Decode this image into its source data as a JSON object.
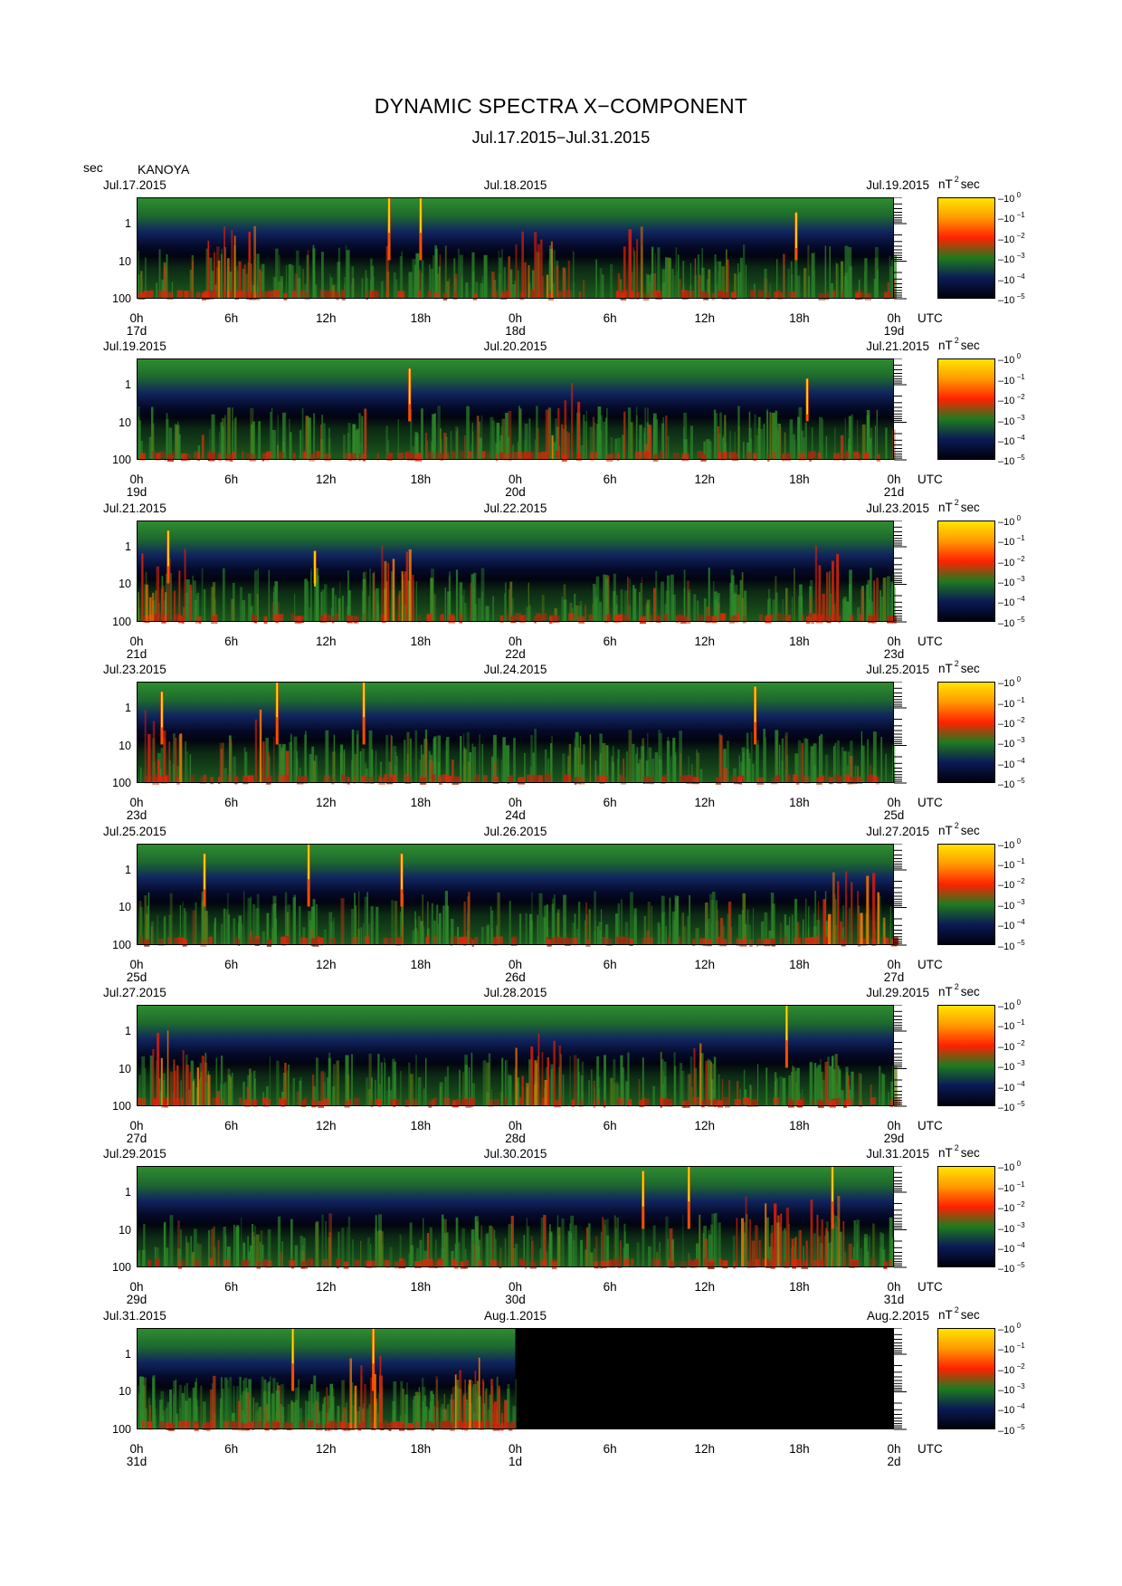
{
  "header": {
    "title": "DYNAMIC SPECTRA X−COMPONENT",
    "subtitle": "Jul.17.2015−Jul.31.2015",
    "unit_label": "sec",
    "station": "KANOYA"
  },
  "colorbar": {
    "unit_main": "nT",
    "unit_sup": "2",
    "unit_tail": "sec",
    "tick_labels": [
      "10",
      "10",
      "10",
      "10",
      "10",
      "10"
    ],
    "tick_exponents": [
      "0",
      "−1",
      "−2",
      "−3",
      "−4",
      "−5"
    ],
    "colors": [
      "#ffe600",
      "#ff9900",
      "#ff2200",
      "#1f7a1f",
      "#0a1a55",
      "#00000a"
    ]
  },
  "chart_data": {
    "type": "heatmap",
    "title": "DYNAMIC SPECTRA X−COMPONENT",
    "subtitle": "Jul.17.2015−Jul.31.2015",
    "ylabel": "sec",
    "y_scale": "log",
    "ylim": [
      100,
      0.2
    ],
    "y_ticks": [
      "1",
      "10",
      "100"
    ],
    "x_ticks": [
      "0h",
      "6h",
      "12h",
      "18h",
      "0h",
      "6h",
      "12h",
      "18h",
      "0h"
    ],
    "x_unit": "UTC",
    "colorbar_range": [
      1e-05,
      1
    ],
    "panels": [
      {
        "start_date": "Jul.17.2015",
        "mid_date": "Jul.18.2015",
        "end_date": "Jul.19.2015",
        "days": [
          "17d",
          "18d",
          "19d"
        ],
        "data_end_hour": 48,
        "spikes": [
          {
            "hour": 16.0,
            "level": 0.0
          },
          {
            "hour": 18.0,
            "level": 0.0
          },
          {
            "hour": 41.8,
            "level": 0.15
          }
        ],
        "red_bursts": [
          {
            "start": 4.5,
            "end": 8.0
          },
          {
            "start": 24.0,
            "end": 27.5
          },
          {
            "start": 30.5,
            "end": 32.0
          }
        ]
      },
      {
        "start_date": "Jul.19.2015",
        "mid_date": "Jul.20.2015",
        "end_date": "Jul.21.2015",
        "days": [
          "19d",
          "20d",
          "21d"
        ],
        "data_end_hour": 48,
        "spikes": [
          {
            "hour": 17.3,
            "level": 0.1
          },
          {
            "hour": 42.5,
            "level": 0.2
          }
        ],
        "red_bursts": [
          {
            "start": 26.0,
            "end": 28.0
          }
        ]
      },
      {
        "start_date": "Jul.21.2015",
        "mid_date": "Jul.22.2015",
        "end_date": "Jul.23.2015",
        "days": [
          "21d",
          "22d",
          "23d"
        ],
        "data_end_hour": 48,
        "spikes": [
          {
            "hour": 2.0,
            "level": 0.1
          },
          {
            "hour": 11.3,
            "level": 0.3
          }
        ],
        "red_bursts": [
          {
            "start": 15.5,
            "end": 17.5
          },
          {
            "start": 0.3,
            "end": 3.5
          },
          {
            "start": 43.0,
            "end": 44.5
          }
        ]
      },
      {
        "start_date": "Jul.23.2015",
        "mid_date": "Jul.24.2015",
        "end_date": "Jul.25.2015",
        "days": [
          "23d",
          "24d",
          "25d"
        ],
        "data_end_hour": 48,
        "spikes": [
          {
            "hour": 1.6,
            "level": 0.1
          },
          {
            "hour": 8.9,
            "level": 0.0
          },
          {
            "hour": 14.4,
            "level": 0.0
          },
          {
            "hour": 39.2,
            "level": 0.05
          }
        ],
        "red_bursts": [
          {
            "start": 0.5,
            "end": 3.0
          },
          {
            "start": 7.5,
            "end": 8.5
          }
        ]
      },
      {
        "start_date": "Jul.25.2015",
        "mid_date": "Jul.26.2015",
        "end_date": "Jul.27.2015",
        "days": [
          "25d",
          "26d",
          "27d"
        ],
        "data_end_hour": 48,
        "spikes": [
          {
            "hour": 4.3,
            "level": 0.1
          },
          {
            "hour": 10.9,
            "level": 0.0
          },
          {
            "hour": 16.8,
            "level": 0.1
          }
        ],
        "red_bursts": [
          {
            "start": 43.5,
            "end": 47.5
          }
        ]
      },
      {
        "start_date": "Jul.27.2015",
        "mid_date": "Jul.28.2015",
        "end_date": "Jul.29.2015",
        "days": [
          "27d",
          "28d",
          "29d"
        ],
        "data_end_hour": 48,
        "spikes": [
          {
            "hour": 41.2,
            "level": 0.0
          }
        ],
        "red_bursts": [
          {
            "start": 1.0,
            "end": 4.5
          },
          {
            "start": 24.0,
            "end": 27.0
          },
          {
            "start": 35.0,
            "end": 36.5
          }
        ]
      },
      {
        "start_date": "Jul.29.2015",
        "mid_date": "Jul.30.2015",
        "end_date": "Jul.31.2015",
        "days": [
          "29d",
          "30d",
          "31d"
        ],
        "data_end_hour": 48,
        "spikes": [
          {
            "hour": 32.1,
            "level": 0.05
          },
          {
            "hour": 35.0,
            "level": 0.0
          },
          {
            "hour": 44.1,
            "level": 0.0
          }
        ],
        "red_bursts": [
          {
            "start": 38.0,
            "end": 45.0
          }
        ]
      },
      {
        "start_date": "Jul.31.2015",
        "mid_date": "Aug.1.2015",
        "end_date": "Aug.2.2015",
        "days": [
          "31d",
          "1d",
          "2d"
        ],
        "data_end_hour": 24,
        "spikes": [
          {
            "hour": 9.9,
            "level": 0.0
          },
          {
            "hour": 15.0,
            "level": 0.0
          }
        ],
        "red_bursts": [
          {
            "start": 13.5,
            "end": 15.5
          },
          {
            "start": 20.0,
            "end": 23.5
          }
        ]
      }
    ]
  }
}
